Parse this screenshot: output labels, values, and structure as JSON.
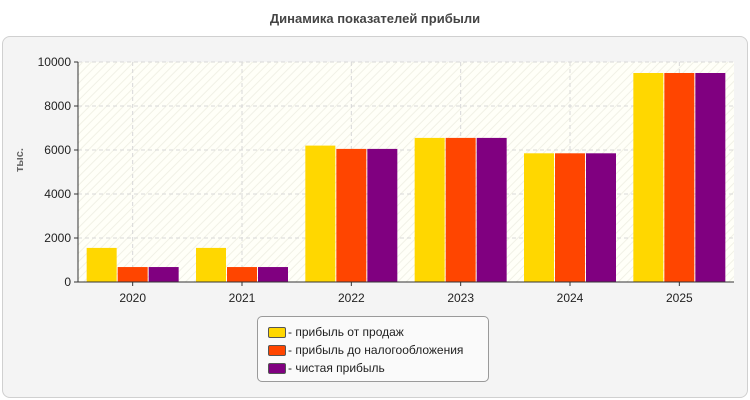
{
  "chart_data": {
    "type": "bar",
    "title": "Динамика показателей прибыли",
    "ylabel": "тыс.",
    "xlabel": "",
    "ylim": [
      0,
      10000
    ],
    "yticks": [
      0,
      2000,
      4000,
      6000,
      8000,
      10000
    ],
    "categories": [
      "2020",
      "2021",
      "2022",
      "2023",
      "2024",
      "2025"
    ],
    "series": [
      {
        "name": "- прибыль от продаж",
        "color": "#FFD700",
        "values": [
          1550,
          1550,
          6200,
          6550,
          5850,
          9500
        ]
      },
      {
        "name": "- прибыль до налогообложения",
        "color": "#FF4500",
        "values": [
          680,
          680,
          6050,
          6550,
          5850,
          9500
        ]
      },
      {
        "name": "- чистая прибыль",
        "color": "#800080",
        "values": [
          680,
          680,
          6050,
          6550,
          5850,
          9500
        ]
      }
    ],
    "grid": true,
    "legend": "bottom"
  }
}
